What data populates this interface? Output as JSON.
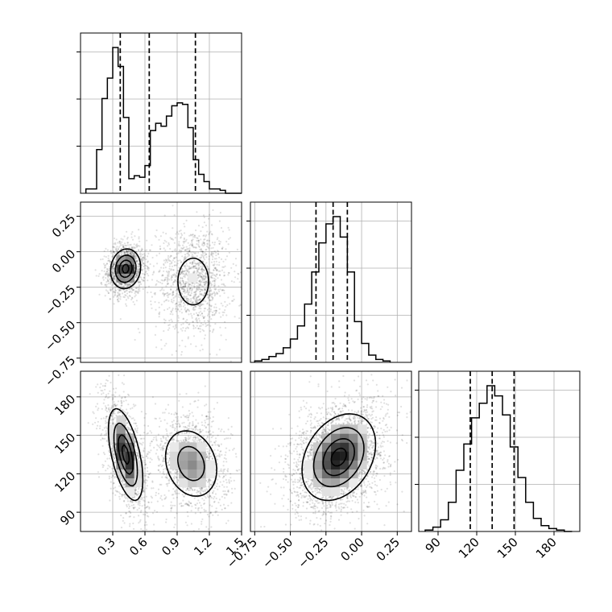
{
  "chart_data": {
    "type": "corner",
    "parameters": [
      {
        "id": "p0",
        "range": [
          0.0,
          1.5
        ],
        "ticks": [
          0.3,
          0.6,
          0.9,
          1.2,
          1.5
        ],
        "tick_labels": [
          "0.3",
          "0.6",
          "0.9",
          "1.2",
          "1.5"
        ],
        "quantiles": [
          0.37,
          0.64,
          1.07
        ],
        "histogram": {
          "bin_edges": [
            0.05,
            0.1,
            0.15,
            0.2,
            0.25,
            0.3,
            0.35,
            0.4,
            0.45,
            0.5,
            0.55,
            0.6,
            0.65,
            0.7,
            0.75,
            0.8,
            0.85,
            0.9,
            0.95,
            1.0,
            1.05,
            1.1,
            1.15,
            1.2,
            1.25,
            1.3,
            1.35,
            1.4,
            1.45,
            1.5
          ],
          "counts": [
            0.03,
            0.03,
            0.3,
            0.65,
            0.79,
            1.0,
            0.87,
            0.52,
            0.1,
            0.12,
            0.11,
            0.19,
            0.43,
            0.48,
            0.46,
            0.53,
            0.6,
            0.62,
            0.61,
            0.45,
            0.23,
            0.13,
            0.08,
            0.03,
            0.03,
            0.02,
            0.0,
            0.0,
            0.0
          ]
        }
      },
      {
        "id": "p1",
        "range": [
          -0.78,
          0.35
        ],
        "ticks": [
          -0.75,
          -0.5,
          -0.25,
          0.0,
          0.25
        ],
        "tick_labels": [
          "−0.75",
          "−0.50",
          "−0.25",
          "0.00",
          "0.25"
        ],
        "quantiles": [
          -0.32,
          -0.2,
          -0.1
        ],
        "histogram": {
          "bin_edges": [
            -0.75,
            -0.7,
            -0.65,
            -0.6,
            -0.55,
            -0.5,
            -0.45,
            -0.4,
            -0.35,
            -0.3,
            -0.25,
            -0.2,
            -0.15,
            -0.1,
            -0.05,
            0.0,
            0.05,
            0.1,
            0.15,
            0.2
          ],
          "counts": [
            0.01,
            0.02,
            0.04,
            0.06,
            0.1,
            0.16,
            0.25,
            0.4,
            0.62,
            0.82,
            0.95,
            1.0,
            0.86,
            0.62,
            0.28,
            0.13,
            0.05,
            0.02,
            0.01
          ]
        }
      },
      {
        "id": "p2",
        "range": [
          75,
          200
        ],
        "ticks": [
          90,
          120,
          150,
          180
        ],
        "tick_labels": [
          "90",
          "120",
          "150",
          "180"
        ],
        "quantiles": [
          115,
          132,
          149
        ],
        "histogram": {
          "bin_edges": [
            80,
            86,
            92,
            98,
            104,
            110,
            116,
            122,
            128,
            134,
            140,
            146,
            152,
            158,
            164,
            170,
            176,
            182,
            188,
            194
          ],
          "counts": [
            0.01,
            0.03,
            0.08,
            0.2,
            0.42,
            0.6,
            0.78,
            0.88,
            1.0,
            0.93,
            0.8,
            0.58,
            0.37,
            0.2,
            0.09,
            0.04,
            0.02,
            0.01,
            0.0
          ]
        }
      }
    ],
    "pairs": [
      {
        "x": "p0",
        "y": "p1",
        "modes": [
          {
            "center": [
              0.42,
              -0.12
            ],
            "sd": [
              0.07,
              0.07
            ],
            "rho": 0.1,
            "weight": 0.5
          },
          {
            "center": [
              1.05,
              -0.21
            ],
            "sd": [
              0.13,
              0.15
            ],
            "rho": 0.0,
            "weight": 0.5
          }
        ]
      },
      {
        "x": "p0",
        "y": "p2",
        "modes": [
          {
            "center": [
              0.42,
              135
            ],
            "sd": [
              0.08,
              18
            ],
            "rho": -0.55,
            "weight": 0.5
          },
          {
            "center": [
              1.03,
              128
            ],
            "sd": [
              0.14,
              15
            ],
            "rho": -0.2,
            "weight": 0.5
          }
        ]
      },
      {
        "x": "p1",
        "y": "p2",
        "modes": [
          {
            "center": [
              -0.16,
              133
            ],
            "sd": [
              0.13,
              17
            ],
            "rho": 0.3,
            "weight": 1.0
          }
        ]
      }
    ]
  }
}
